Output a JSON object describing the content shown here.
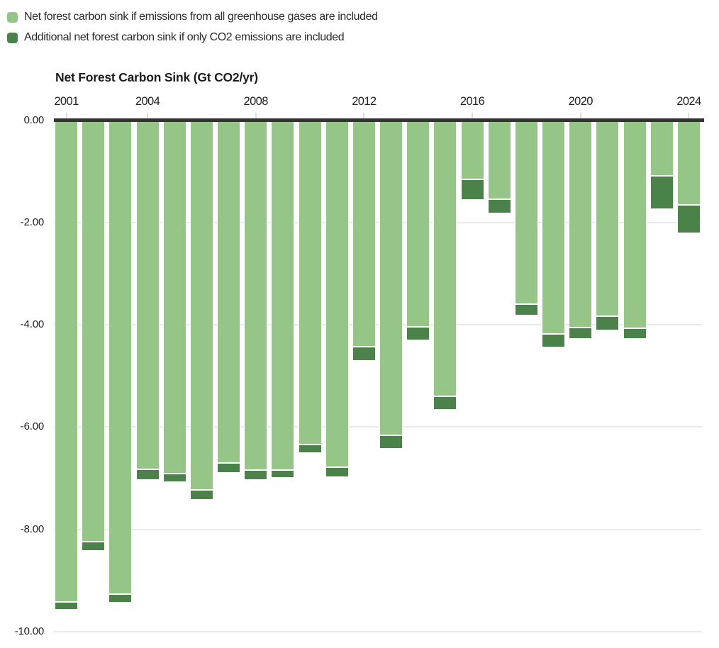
{
  "legend": {
    "items": [
      {
        "label": "Net forest carbon sink if emissions from all greenhouse gases are included",
        "color": "#95c687"
      },
      {
        "label": "Additional net forest carbon sink if only CO2 emissions are included",
        "color": "#4b824a"
      }
    ]
  },
  "chart_data": {
    "type": "bar",
    "stacked": true,
    "orientation": "vertical-negative",
    "title": "Net Forest Carbon Sink (Gt CO2/yr)",
    "xlabel": "",
    "ylabel": "Net Forest Carbon Sink (Gt CO2/yr)",
    "ylim": [
      -10,
      0
    ],
    "grid": "horizontal",
    "legend_position": "top-left",
    "categories": [
      2001,
      2002,
      2003,
      2004,
      2005,
      2006,
      2007,
      2008,
      2009,
      2010,
      2011,
      2012,
      2013,
      2014,
      2015,
      2016,
      2017,
      2018,
      2019,
      2020,
      2021,
      2022,
      2023,
      2024
    ],
    "series": [
      {
        "name": "Net forest carbon sink if emissions from all greenhouse gases are included",
        "color": "#95c687",
        "values": [
          -9.42,
          -8.24,
          -9.27,
          -6.82,
          -6.91,
          -7.23,
          -6.7,
          -6.84,
          -6.84,
          -6.34,
          -6.79,
          -4.43,
          -6.16,
          -4.04,
          -5.4,
          -1.16,
          -1.55,
          -3.6,
          -4.18,
          -4.05,
          -3.83,
          -4.07,
          -1.09,
          -1.66
        ]
      },
      {
        "name": "Additional net forest carbon sink if only CO2 emissions are included",
        "color": "#4b824a",
        "values": [
          -0.15,
          -0.18,
          -0.16,
          -0.21,
          -0.17,
          -0.19,
          -0.2,
          -0.19,
          -0.15,
          -0.17,
          -0.19,
          -0.28,
          -0.27,
          -0.26,
          -0.26,
          -0.4,
          -0.27,
          -0.22,
          -0.26,
          -0.23,
          -0.28,
          -0.21,
          -0.65,
          -0.55
        ]
      }
    ],
    "stack_totals": [
      -9.57,
      -8.42,
      -9.43,
      -7.03,
      -7.08,
      -7.42,
      -6.9,
      -7.03,
      -6.99,
      -6.51,
      -6.98,
      -4.71,
      -6.43,
      -4.3,
      -5.66,
      -1.56,
      -1.82,
      -3.82,
      -4.44,
      -4.28,
      -4.11,
      -4.28,
      -1.74,
      -2.21
    ],
    "x_tick_years": [
      2001,
      2004,
      2008,
      2012,
      2016,
      2020,
      2024
    ],
    "x_tick_labels": [
      "2001",
      "2004",
      "2008",
      "2012",
      "2016",
      "2020",
      "2024"
    ],
    "y_tick_values": [
      0,
      -2,
      -4,
      -6,
      -8,
      -10
    ],
    "y_tick_labels": [
      "0.00",
      "-2.00",
      "-4.00",
      "-6.00",
      "-8.00",
      "-10.00"
    ]
  },
  "colors": {
    "light_green": "#95c687",
    "dark_green": "#4b824a",
    "zero_line": "#333333",
    "gridline": "#ebebeb",
    "text": "#222222"
  }
}
